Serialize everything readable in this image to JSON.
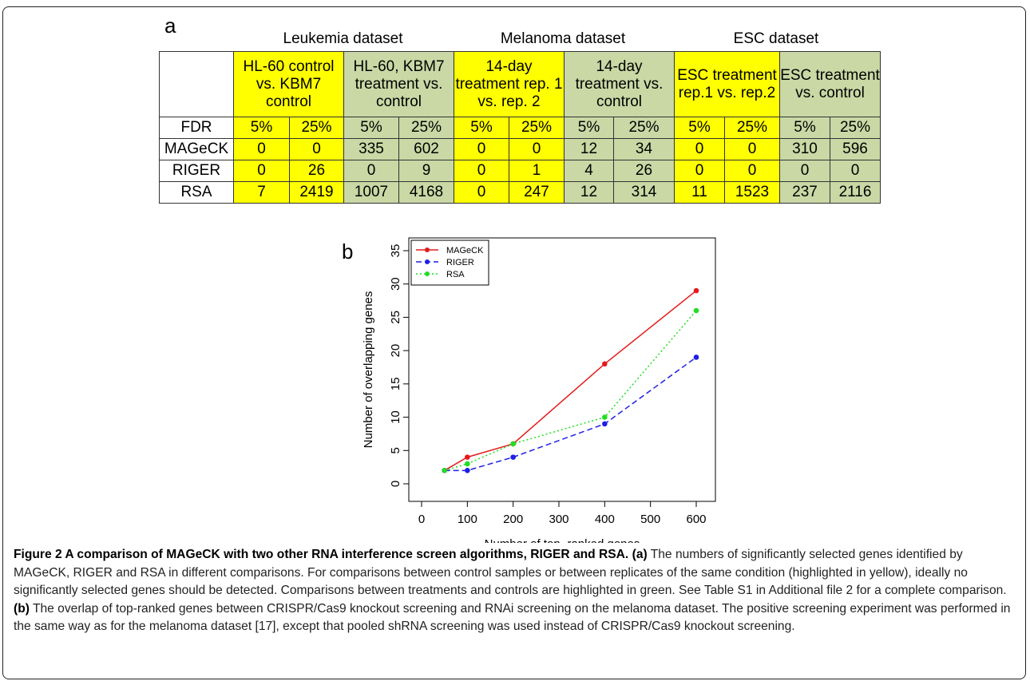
{
  "panel_a": {
    "label": "a",
    "groups": [
      "Leukemia dataset",
      "Melanoma dataset",
      "ESC dataset"
    ],
    "columns": [
      {
        "text": "HL-60 control vs. KBM7 control",
        "color": "yellow"
      },
      {
        "text": "HL-60, KBM7 treatment vs. control",
        "color": "green"
      },
      {
        "text": "14-day treatment rep. 1 vs. rep. 2",
        "color": "yellow"
      },
      {
        "text": "14-day treatment vs. control",
        "color": "green"
      },
      {
        "text": "ESC treatment rep.1 vs. rep.2",
        "color": "yellow"
      },
      {
        "text": "ESC treatment vs. control",
        "color": "green"
      }
    ],
    "fdr_label": "FDR",
    "fdr_values": [
      "5%",
      "25%"
    ],
    "rows": [
      {
        "method": "MAGeCK",
        "values": [
          "0",
          "0",
          "335",
          "602",
          "0",
          "0",
          "12",
          "34",
          "0",
          "0",
          "310",
          "596"
        ]
      },
      {
        "method": "RIGER",
        "values": [
          "0",
          "26",
          "0",
          "9",
          "0",
          "1",
          "4",
          "26",
          "0",
          "0",
          "0",
          "0"
        ]
      },
      {
        "method": "RSA",
        "values": [
          "7",
          "2419",
          "1007",
          "4168",
          "0",
          "247",
          "12",
          "314",
          "11",
          "1523",
          "237",
          "2116"
        ]
      }
    ],
    "colors": {
      "yellow": "#ffff00",
      "green": "#c9d8a5"
    }
  },
  "panel_b": {
    "label": "b",
    "chart_data": {
      "type": "line",
      "xlabel": "Number of top−ranked genes",
      "ylabel": "Number of overlapping genes",
      "xlim": [
        0,
        600
      ],
      "ylim": [
        0,
        35
      ],
      "xticks": [
        0,
        100,
        200,
        300,
        400,
        500,
        600
      ],
      "yticks": [
        0,
        5,
        10,
        15,
        20,
        25,
        30,
        35
      ],
      "legend_position": "top-left",
      "x": [
        50,
        100,
        200,
        400,
        600
      ],
      "series": [
        {
          "name": "MAGeCK",
          "values": [
            2,
            4,
            6,
            18,
            29
          ],
          "color": "#e41a1c",
          "style": "solid"
        },
        {
          "name": "RIGER",
          "values": [
            2,
            2,
            4,
            9,
            19
          ],
          "color": "#1f1fe6",
          "style": "dashed"
        },
        {
          "name": "RSA",
          "values": [
            2,
            3,
            6,
            10,
            26
          ],
          "color": "#22dd22",
          "style": "dotted"
        }
      ]
    }
  },
  "caption": {
    "title": "Figure 2 A comparison of MAGeCK with two other RNA interference screen algorithms, RIGER and RSA.",
    "part_a_label": "(a)",
    "part_a": " The numbers of significantly selected genes identified by MAGeCK, RIGER and RSA in different comparisons. For comparisons between control samples or between replicates of the same condition (highlighted in yellow), ideally no significantly selected genes should be detected. Comparisons between treatments and controls are highlighted in green. See Table S1 in Additional file 2 for a complete comparison. ",
    "part_b_label": "(b)",
    "part_b": " The overlap of top-ranked genes between CRISPR/Cas9 knockout screening and RNAi screening on the melanoma dataset. The positive screening experiment was performed in the same way as for the melanoma dataset [17], except that pooled shRNA screening was used instead of CRISPR/Cas9 knockout screening."
  }
}
